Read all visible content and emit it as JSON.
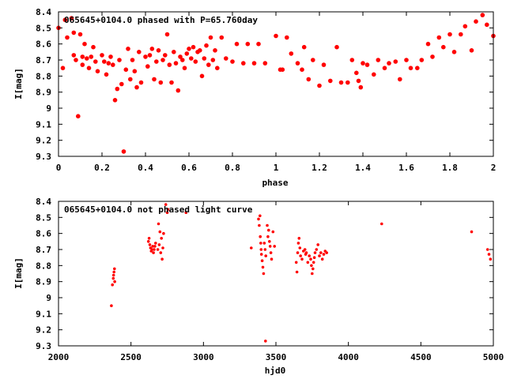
{
  "chart_data": [
    {
      "type": "scatter",
      "title": "065645+0104.0 phased with P=65.760day",
      "xlabel": "phase",
      "ylabel": "I[mag]",
      "xlim": [
        0,
        2
      ],
      "ylim": [
        8.4,
        9.3
      ],
      "y_inverted": true,
      "grid": false,
      "marker_color": "#ff0000",
      "x_ticks": [
        "0",
        "0.2",
        "0.4",
        "0.6",
        "0.8",
        "1",
        "1.2",
        "1.4",
        "1.6",
        "1.8",
        "2"
      ],
      "y_ticks": [
        "8.4",
        "8.5",
        "8.6",
        "8.7",
        "8.8",
        "8.9",
        "9",
        "9.1",
        "9.2",
        "9.3"
      ],
      "series": [
        {
          "x": [
            0.0,
            0.02,
            0.03,
            0.04,
            0.06,
            0.07,
            0.07,
            0.08,
            0.09,
            0.1,
            0.11,
            0.11,
            0.12,
            0.13,
            0.14,
            0.15,
            0.16,
            0.17,
            0.18,
            0.2,
            0.21,
            0.22,
            0.23,
            0.24,
            0.25,
            0.26,
            0.27,
            0.28,
            0.29,
            0.3,
            0.31,
            0.32,
            0.33,
            0.34,
            0.35,
            0.36,
            0.37,
            0.38,
            0.4,
            0.41,
            0.42,
            0.43,
            0.44,
            0.45,
            0.46,
            0.47,
            0.48,
            0.49,
            0.5,
            0.51,
            0.52,
            0.53,
            0.54,
            0.55,
            0.56,
            0.57,
            0.58,
            0.59,
            0.6,
            0.61,
            0.62,
            0.63,
            0.64,
            0.65,
            0.66,
            0.67,
            0.68,
            0.69,
            0.7,
            0.71,
            0.72,
            0.73,
            0.75,
            0.77,
            0.8,
            0.82,
            0.85,
            0.87,
            0.9,
            0.92,
            0.95,
            1.0,
            1.02,
            1.03,
            1.05,
            1.07,
            1.1,
            1.12,
            1.13,
            1.15,
            1.17,
            1.2,
            1.22,
            1.25,
            1.28,
            1.3,
            1.33,
            1.35,
            1.37,
            1.38,
            1.39,
            1.4,
            1.42,
            1.45,
            1.47,
            1.5,
            1.52,
            1.55,
            1.57,
            1.6,
            1.62,
            1.65,
            1.67,
            1.7,
            1.72,
            1.75,
            1.77,
            1.8,
            1.82,
            1.85,
            1.87,
            1.9,
            1.92,
            1.95,
            1.97,
            2.0
          ],
          "y": [
            8.5,
            8.75,
            8.45,
            8.56,
            8.44,
            8.53,
            8.67,
            8.7,
            9.05,
            8.54,
            8.68,
            8.73,
            8.6,
            8.69,
            8.75,
            8.68,
            8.62,
            8.71,
            8.77,
            8.67,
            8.71,
            8.79,
            8.72,
            8.68,
            8.73,
            8.95,
            8.88,
            8.7,
            8.85,
            9.27,
            8.76,
            8.63,
            8.82,
            8.7,
            8.77,
            8.87,
            8.65,
            8.84,
            8.68,
            8.74,
            8.67,
            8.63,
            8.82,
            8.71,
            8.64,
            8.84,
            8.7,
            8.67,
            8.54,
            8.73,
            8.84,
            8.65,
            8.72,
            8.89,
            8.68,
            8.7,
            8.75,
            8.66,
            8.63,
            8.69,
            8.62,
            8.71,
            8.65,
            8.64,
            8.8,
            8.69,
            8.61,
            8.73,
            8.56,
            8.7,
            8.64,
            8.75,
            8.56,
            8.69,
            8.71,
            8.6,
            8.72,
            8.6,
            8.72,
            8.6,
            8.72,
            8.55,
            8.76,
            8.76,
            8.56,
            8.66,
            8.72,
            8.76,
            8.62,
            8.82,
            8.7,
            8.86,
            8.73,
            8.83,
            8.62,
            8.84,
            8.84,
            8.7,
            8.78,
            8.83,
            8.87,
            8.72,
            8.73,
            8.79,
            8.7,
            8.75,
            8.72,
            8.71,
            8.82,
            8.7,
            8.75,
            8.75,
            8.7,
            8.6,
            8.68,
            8.56,
            8.62,
            8.54,
            8.65,
            8.54,
            8.49,
            8.64,
            8.46,
            8.42,
            8.48,
            8.55
          ]
        }
      ]
    },
    {
      "type": "scatter",
      "title": "065645+0104.0 not phased light curve",
      "xlabel": "hjd0",
      "ylabel": "I[mag]",
      "xlim": [
        2000,
        5000
      ],
      "ylim": [
        8.4,
        9.3
      ],
      "y_inverted": true,
      "grid": false,
      "marker_color": "#ff0000",
      "x_ticks": [
        "2000",
        "2500",
        "3000",
        "3500",
        "4000",
        "4500",
        "5000"
      ],
      "y_ticks": [
        "8.4",
        "8.5",
        "8.6",
        "8.7",
        "8.8",
        "8.9",
        "9",
        "9.1",
        "9.2",
        "9.3"
      ],
      "series": [
        {
          "x": [
            2365,
            2372,
            2378,
            2380,
            2383,
            2386,
            2388,
            2620,
            2625,
            2630,
            2635,
            2640,
            2645,
            2650,
            2655,
            2660,
            2665,
            2670,
            2685,
            2690,
            2695,
            2700,
            2705,
            2710,
            2715,
            2720,
            2725,
            2740,
            2750,
            2755,
            2880,
            3330,
            3380,
            3385,
            3390,
            3392,
            3395,
            3398,
            3400,
            3405,
            3410,
            3415,
            3420,
            3425,
            3428,
            3430,
            3440,
            3445,
            3450,
            3455,
            3460,
            3465,
            3470,
            3480,
            3490,
            3640,
            3645,
            3650,
            3655,
            3660,
            3665,
            3670,
            3680,
            3690,
            3700,
            3705,
            3710,
            3720,
            3730,
            3740,
            3745,
            3750,
            3755,
            3760,
            3765,
            3770,
            3780,
            3790,
            3800,
            3810,
            3820,
            3830,
            3840,
            3850,
            4230,
            4850,
            4960,
            4970,
            4980
          ],
          "y": [
            9.05,
            8.92,
            8.88,
            8.86,
            8.84,
            8.82,
            8.9,
            8.65,
            8.63,
            8.67,
            8.69,
            8.71,
            8.7,
            8.68,
            8.72,
            8.7,
            8.68,
            8.66,
            8.7,
            8.54,
            8.67,
            8.59,
            8.72,
            8.63,
            8.76,
            8.69,
            8.6,
            8.42,
            8.47,
            8.45,
            8.47,
            8.69,
            8.51,
            8.55,
            8.49,
            8.62,
            8.66,
            8.7,
            8.73,
            8.77,
            8.81,
            8.85,
            8.66,
            8.7,
            9.27,
            8.74,
            8.55,
            8.62,
            8.58,
            8.65,
            8.68,
            8.72,
            8.76,
            8.59,
            8.68,
            8.78,
            8.84,
            8.72,
            8.66,
            8.63,
            8.69,
            8.74,
            8.76,
            8.71,
            8.7,
            8.73,
            8.72,
            8.78,
            8.74,
            8.76,
            8.8,
            8.85,
            8.82,
            8.78,
            8.75,
            8.72,
            8.7,
            8.67,
            8.74,
            8.72,
            8.76,
            8.73,
            8.71,
            8.72,
            8.54,
            8.59,
            8.7,
            8.73,
            8.76
          ]
        }
      ]
    }
  ]
}
